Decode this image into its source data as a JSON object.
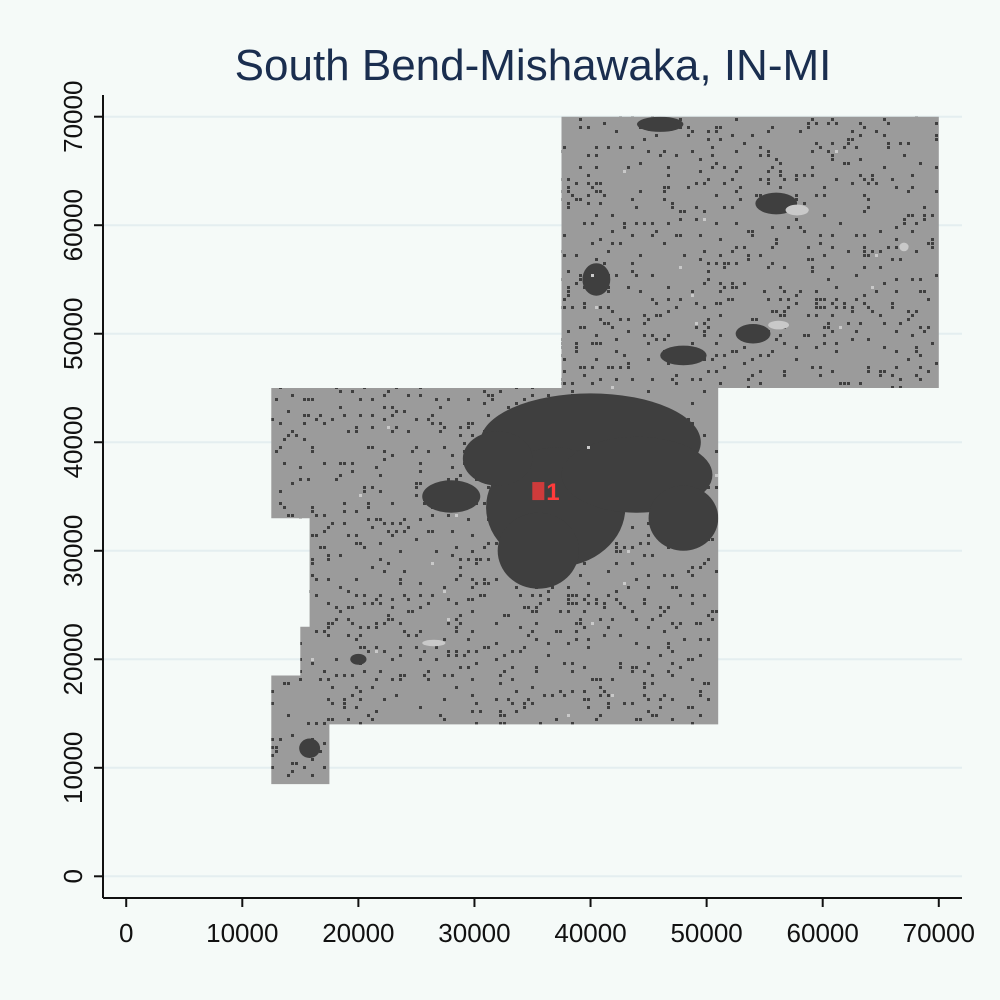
{
  "title": "South Bend-Mishawaka, IN-MI",
  "colors": {
    "background": "#f5faf8",
    "grid": "#e4eef0",
    "axis": "#111111",
    "land": "#9b9b9b",
    "urban": "#3f3f3f",
    "light_patch": "#c9c9c9",
    "marker": "#ff3b3b",
    "title": "#1a2e4f"
  },
  "chart_data": {
    "type": "heatmap",
    "title": "South Bend-Mishawaka, IN-MI",
    "xlabel": "",
    "ylabel": "",
    "xlim": [
      -2000,
      72000
    ],
    "ylim": [
      -2000,
      72000
    ],
    "xticks": [
      0,
      10000,
      20000,
      30000,
      40000,
      50000,
      60000,
      70000
    ],
    "yticks": [
      0,
      10000,
      20000,
      30000,
      40000,
      50000,
      60000,
      70000
    ],
    "xtick_labels": [
      "0",
      "10000",
      "20000",
      "30000",
      "40000",
      "50000",
      "60000",
      "70000"
    ],
    "ytick_labels": [
      "0",
      "10000",
      "20000",
      "30000",
      "40000",
      "50000",
      "60000",
      "70000"
    ],
    "grid": "horizontal",
    "region_outline": [
      [
        37500,
        70000
      ],
      [
        70000,
        70000
      ],
      [
        70000,
        45000
      ],
      [
        51000,
        45000
      ],
      [
        51000,
        14000
      ],
      [
        17500,
        14000
      ],
      [
        17500,
        8500
      ],
      [
        12500,
        8500
      ],
      [
        12500,
        18500
      ],
      [
        15000,
        18500
      ],
      [
        15000,
        23000
      ],
      [
        15800,
        23000
      ],
      [
        15800,
        33000
      ],
      [
        12500,
        33000
      ],
      [
        12500,
        45000
      ],
      [
        37500,
        45000
      ]
    ],
    "urban_cores": [
      {
        "x": 40000,
        "y": 40000,
        "rx": 9500,
        "ry": 4500
      },
      {
        "x": 37000,
        "y": 34000,
        "rx": 6000,
        "ry": 5500
      },
      {
        "x": 44000,
        "y": 37000,
        "rx": 6500,
        "ry": 3500
      },
      {
        "x": 35500,
        "y": 30000,
        "rx": 3500,
        "ry": 3500
      },
      {
        "x": 48000,
        "y": 33000,
        "rx": 3000,
        "ry": 3000
      },
      {
        "x": 32000,
        "y": 38500,
        "rx": 3000,
        "ry": 2500
      },
      {
        "x": 28000,
        "y": 35000,
        "rx": 2500,
        "ry": 1500
      }
    ],
    "urban_patches": [
      {
        "x": 15800,
        "y": 11800,
        "rx": 900,
        "ry": 900
      },
      {
        "x": 20000,
        "y": 20000,
        "rx": 700,
        "ry": 500
      },
      {
        "x": 56000,
        "y": 62000,
        "rx": 1800,
        "ry": 1000
      },
      {
        "x": 46000,
        "y": 69300,
        "rx": 2000,
        "ry": 700
      },
      {
        "x": 40500,
        "y": 55000,
        "rx": 1200,
        "ry": 1500
      },
      {
        "x": 48000,
        "y": 48000,
        "rx": 2000,
        "ry": 900
      },
      {
        "x": 54000,
        "y": 50000,
        "rx": 1500,
        "ry": 900
      }
    ],
    "light_patches": [
      {
        "x": 26500,
        "y": 21500,
        "rx": 1000,
        "ry": 300
      },
      {
        "x": 57800,
        "y": 61400,
        "rx": 1000,
        "ry": 500
      },
      {
        "x": 56200,
        "y": 50800,
        "rx": 900,
        "ry": 400
      },
      {
        "x": 67000,
        "y": 58000,
        "rx": 400,
        "ry": 400
      }
    ],
    "marker": {
      "x": 35500,
      "y": 35500,
      "label": "1"
    }
  }
}
